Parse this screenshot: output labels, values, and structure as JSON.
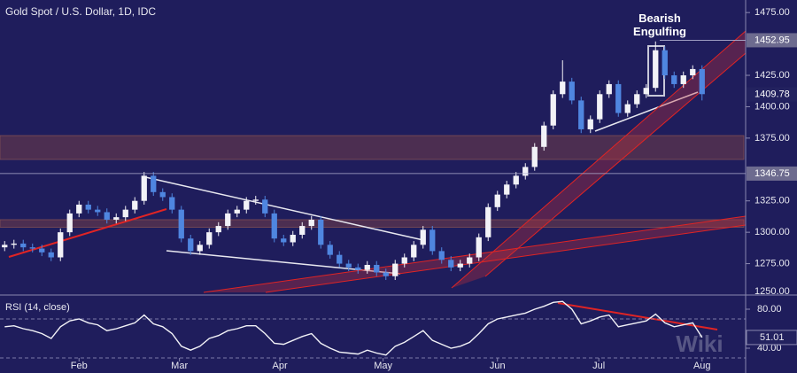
{
  "chart_data": {
    "type": "candlestick",
    "title": "Gold Spot / U.S. Dollar, 1D, IDC",
    "annotation": "Bearish\nEngulfing",
    "up_color": "#f2f2f7",
    "down_color": "#4f86e0",
    "open": [
      1288,
      1290,
      1291,
      1288,
      1287,
      1284,
      1280,
      1300,
      1315,
      1322,
      1318,
      1316,
      1310,
      1312,
      1318,
      1325,
      1345,
      1332,
      1328,
      1318,
      1295,
      1285,
      1290,
      1300,
      1305,
      1315,
      1318,
      1325,
      1326,
      1315,
      1295,
      1292,
      1298,
      1305,
      1310,
      1290,
      1282,
      1275,
      1272,
      1270,
      1274,
      1268,
      1265,
      1275,
      1280,
      1290,
      1302,
      1285,
      1278,
      1272,
      1275,
      1280,
      1296,
      1320,
      1330,
      1338,
      1345,
      1352,
      1368,
      1385,
      1410,
      1420,
      1405,
      1382,
      1390,
      1410,
      1418,
      1395,
      1402,
      1410,
      1415,
      1445,
      1425,
      1418,
      1425,
      1430
    ],
    "high": [
      1293,
      1294,
      1294,
      1291,
      1290,
      1287,
      1303,
      1318,
      1325,
      1325,
      1321,
      1319,
      1315,
      1321,
      1328,
      1348,
      1348,
      1335,
      1331,
      1321,
      1298,
      1293,
      1303,
      1308,
      1318,
      1321,
      1328,
      1329,
      1329,
      1318,
      1298,
      1301,
      1308,
      1313,
      1313,
      1293,
      1285,
      1278,
      1275,
      1277,
      1277,
      1271,
      1278,
      1283,
      1293,
      1305,
      1305,
      1288,
      1281,
      1278,
      1283,
      1299,
      1323,
      1333,
      1341,
      1348,
      1355,
      1371,
      1388,
      1413,
      1437,
      1423,
      1408,
      1393,
      1413,
      1421,
      1421,
      1405,
      1413,
      1418,
      1452,
      1448,
      1428,
      1428,
      1433,
      1433
    ],
    "low": [
      1285,
      1287,
      1285,
      1284,
      1281,
      1277,
      1277,
      1297,
      1312,
      1315,
      1313,
      1307,
      1307,
      1309,
      1315,
      1322,
      1329,
      1325,
      1315,
      1292,
      1282,
      1282,
      1287,
      1297,
      1302,
      1312,
      1315,
      1322,
      1312,
      1292,
      1289,
      1289,
      1295,
      1302,
      1287,
      1279,
      1272,
      1269,
      1267,
      1267,
      1265,
      1262,
      1262,
      1272,
      1277,
      1287,
      1282,
      1275,
      1269,
      1269,
      1272,
      1277,
      1293,
      1317,
      1327,
      1335,
      1342,
      1349,
      1365,
      1382,
      1407,
      1402,
      1379,
      1379,
      1387,
      1407,
      1392,
      1392,
      1399,
      1407,
      1412,
      1422,
      1415,
      1415,
      1422,
      1405
    ],
    "close": [
      1290,
      1291,
      1288,
      1287,
      1284,
      1280,
      1300,
      1315,
      1322,
      1318,
      1316,
      1310,
      1312,
      1318,
      1325,
      1345,
      1332,
      1328,
      1318,
      1295,
      1285,
      1290,
      1300,
      1305,
      1315,
      1318,
      1325,
      1326,
      1315,
      1295,
      1292,
      1298,
      1305,
      1310,
      1290,
      1282,
      1275,
      1272,
      1270,
      1274,
      1268,
      1265,
      1275,
      1280,
      1290,
      1302,
      1285,
      1278,
      1272,
      1275,
      1280,
      1296,
      1320,
      1330,
      1338,
      1345,
      1352,
      1368,
      1385,
      1410,
      1420,
      1405,
      1382,
      1390,
      1410,
      1418,
      1395,
      1402,
      1410,
      1415,
      1445,
      1425,
      1418,
      1425,
      1430,
      1410
    ],
    "xlim": [
      -0.5,
      79.5
    ],
    "xticks": [
      {
        "value": 8,
        "label": "Feb"
      },
      {
        "value": 18.8,
        "label": "Mar"
      },
      {
        "value": 29.6,
        "label": "Apr"
      },
      {
        "value": 40.7,
        "label": "May"
      },
      {
        "value": 53,
        "label": "Jun"
      },
      {
        "value": 63.9,
        "label": "Jul"
      },
      {
        "value": 75,
        "label": "Aug"
      }
    ],
    "ylim": [
      1250,
      1485
    ],
    "yticks": [
      {
        "value": 1475,
        "label": "1475.00"
      },
      {
        "value": 1425,
        "label": "1425.00"
      },
      {
        "value": 1400,
        "label": "1400.00"
      },
      {
        "value": 1375,
        "label": "1375.00"
      },
      {
        "value": 1325,
        "label": "1325.00"
      },
      {
        "value": 1300,
        "label": "1300.00"
      },
      {
        "value": 1275,
        "label": "1275.00"
      },
      {
        "value": 1250,
        "label": "1250.00"
      }
    ],
    "markers": [
      {
        "value": 1452.95,
        "label": "1452.95",
        "color": "#6d6b8f"
      },
      {
        "value": 1409.78,
        "label": "1409.78",
        "color": "#23225f"
      },
      {
        "value": 1346.75,
        "label": "1346.75",
        "color": "#6d6b8f"
      }
    ],
    "zones": [
      [
        1358,
        1377
      ],
      [
        1304,
        1310
      ]
    ],
    "rsi": {
      "title": "RSI (14, close)",
      "color": "#f2f2f7",
      "values": [
        62,
        63,
        60,
        58,
        55,
        50,
        62,
        68,
        70,
        66,
        64,
        58,
        60,
        63,
        66,
        74,
        65,
        62,
        55,
        42,
        38,
        42,
        50,
        53,
        58,
        60,
        63,
        63,
        55,
        45,
        44,
        48,
        52,
        55,
        45,
        40,
        36,
        35,
        34,
        38,
        35,
        33,
        42,
        46,
        52,
        58,
        48,
        44,
        40,
        42,
        46,
        55,
        65,
        70,
        72,
        74,
        76,
        80,
        83,
        87,
        88,
        80,
        65,
        68,
        72,
        74,
        62,
        64,
        66,
        68,
        75,
        66,
        62,
        64,
        66,
        51.01
      ],
      "last_label": "51.01",
      "ylim": [
        30,
        90
      ],
      "yticks": [
        {
          "value": 80,
          "label": "80.00"
        },
        {
          "value": 40,
          "label": "40.00"
        }
      ],
      "levels": [
        70,
        30
      ]
    },
    "watermark": "Wiki"
  }
}
